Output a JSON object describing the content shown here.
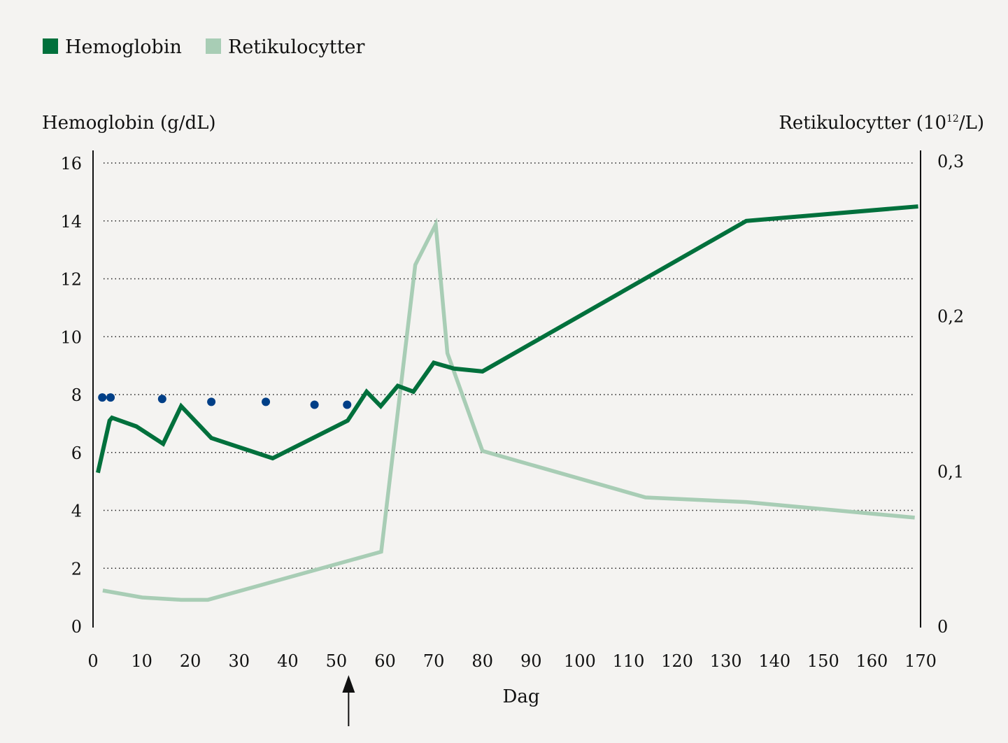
{
  "chart_data": {
    "type": "line",
    "legend": {
      "placement": "top-left",
      "entries": [
        {
          "label": "Hemoglobin",
          "color": "#00703c"
        },
        {
          "label": "Retikulocytter",
          "color": "#a8cdb5"
        }
      ]
    },
    "xlabel": "Dag",
    "ylabel_left": "Hemoglobin (g/dL)",
    "ylabel_right_main": "Retikulocytter (10",
    "ylabel_right_sup": "12",
    "ylabel_right_tail": "/L)",
    "xlim": [
      0,
      170
    ],
    "ylim_left": [
      0,
      16
    ],
    "ylim_right": [
      0,
      0.3
    ],
    "x_ticks": [
      "0",
      "10",
      "20",
      "30",
      "40",
      "50",
      "60",
      "70",
      "80",
      "90",
      "100",
      "110",
      "120",
      "130",
      "140",
      "150",
      "160",
      "170"
    ],
    "y_left_ticks": [
      "0",
      "2",
      "4",
      "6",
      "8",
      "10",
      "12",
      "14",
      "16"
    ],
    "y_right_ticks": [
      "0",
      "0,1",
      "0,2",
      "0,3"
    ],
    "grid": "horizontal dotted",
    "arrow_marker_x": 52.5,
    "series": [
      {
        "name": "Hemoglobin",
        "axis": "left",
        "color": "#00703c",
        "x": [
          1.0,
          3.4,
          3.9,
          8.9,
          14.4,
          18.1,
          24.3,
          36.9,
          52.3,
          56.2,
          59.1,
          62.6,
          65.8,
          70.0,
          74.1,
          80.0,
          134.2,
          169.5
        ],
        "y": [
          5.3,
          7.1,
          7.2,
          6.9,
          6.3,
          7.6,
          6.5,
          5.8,
          7.1,
          8.1,
          7.6,
          8.3,
          8.1,
          9.1,
          8.9,
          8.8,
          14.0,
          14.5
        ]
      },
      {
        "name": "Retikulocytter",
        "axis": "right",
        "color": "#a8cdb5",
        "x": [
          2.0,
          10.1,
          18.1,
          23.6,
          59.2,
          66.2,
          70.4,
          72.8,
          80.0,
          113.5,
          134.2,
          168.8
        ],
        "y": [
          0.023,
          0.0185,
          0.017,
          0.017,
          0.048,
          0.233,
          0.259,
          0.176,
          0.113,
          0.083,
          0.08,
          0.07
        ]
      },
      {
        "axis": "left",
        "style": "points",
        "color": "#003f87",
        "x": [
          1.9,
          3.6,
          14.2,
          24.3,
          35.5,
          45.5,
          52.2
        ],
        "y": [
          7.9,
          7.9,
          7.85,
          7.75,
          7.75,
          7.65,
          7.65
        ]
      }
    ]
  }
}
